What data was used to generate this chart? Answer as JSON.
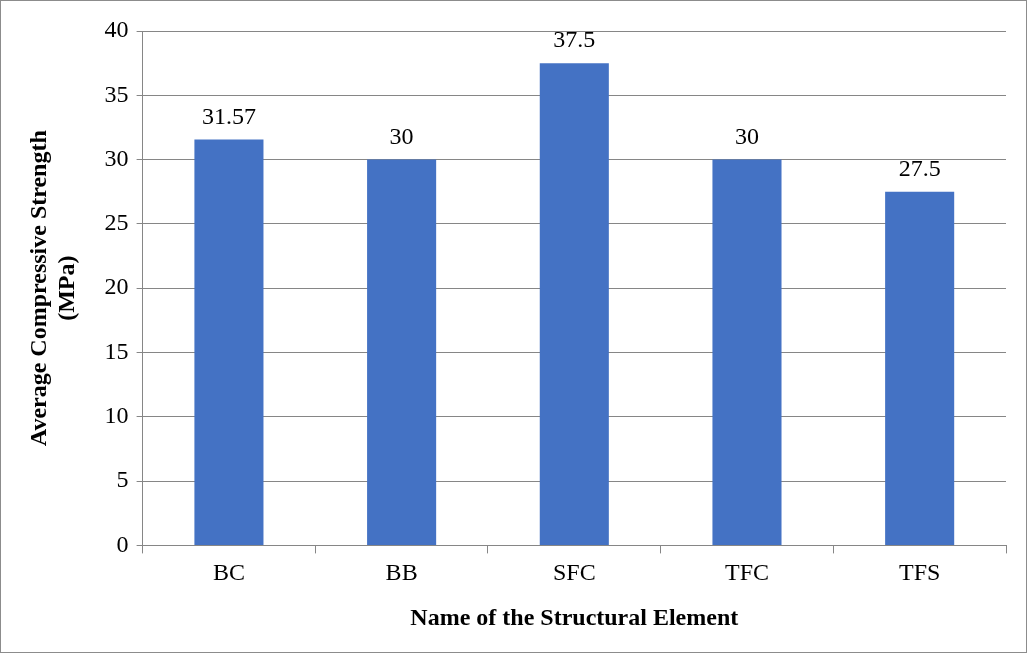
{
  "chart_data": {
    "type": "bar",
    "xlabel": "Name of the Structural Element",
    "ylabel": "Average Compressive Strength (MPa)",
    "categories": [
      "BC",
      "BB",
      "SFC",
      "TFC",
      "TFS"
    ],
    "values": [
      31.57,
      30,
      37.5,
      30,
      27.5
    ],
    "color": "#4472c4",
    "ylim": [
      0,
      40
    ],
    "yticks": [
      0,
      5,
      10,
      15,
      20,
      25,
      30,
      35,
      40
    ],
    "grid": "y",
    "data_labels": true
  }
}
